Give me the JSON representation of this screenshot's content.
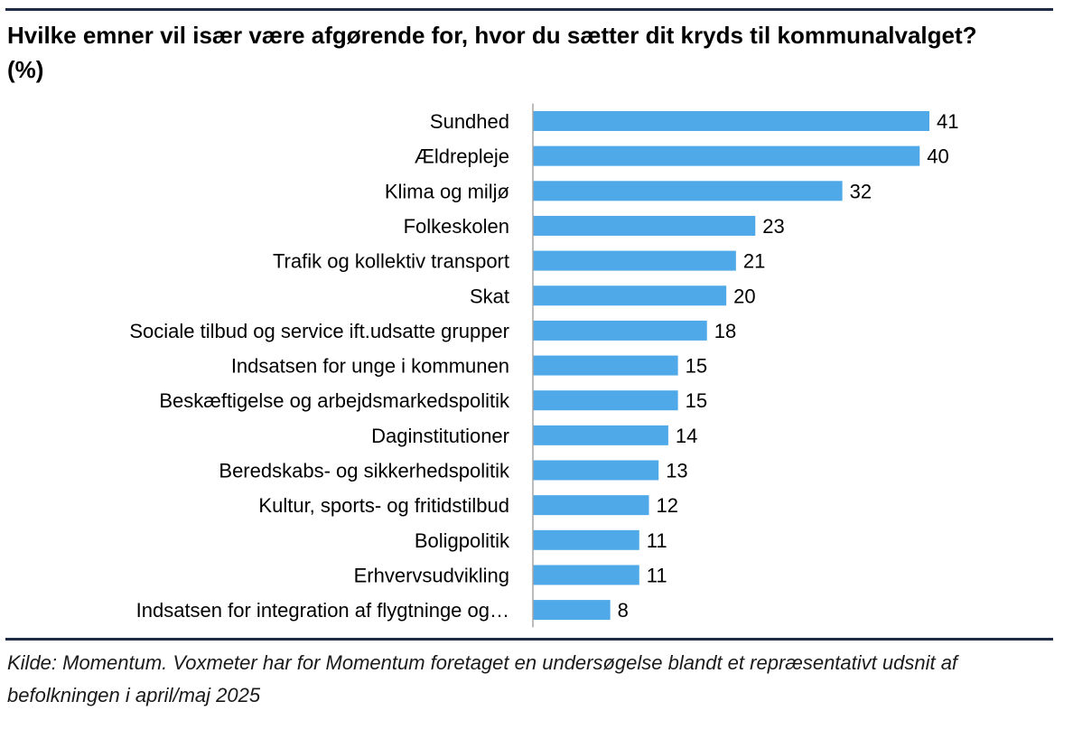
{
  "title": "Hvilke emner vil især være afgørende for, hvor du sætter dit kryds til kommunalvalget?  (%)",
  "source": "Kilde: Momentum. Voxmeter har for Momentum foretaget en undersøgelse blandt et repræsentativt udsnit af befolkningen i april/maj 2025",
  "colors": {
    "bar": "#4fa9e8",
    "axis": "#a6a6a6",
    "rule": "#1f2a44"
  },
  "chart_data": {
    "type": "bar",
    "orientation": "horizontal",
    "title": "Hvilke emner vil især være afgørende for, hvor du sætter dit kryds til kommunalvalget?  (%)",
    "xlabel": "",
    "ylabel": "",
    "xlim": [
      0,
      41
    ],
    "grid": false,
    "categories": [
      "Sundhed",
      "Ældrepleje",
      "Klima og miljø",
      "Folkeskolen",
      "Trafik og kollektiv transport",
      "Skat",
      "Sociale tilbud og service ift.udsatte grupper",
      "Indsatsen for unge i kommunen",
      "Beskæftigelse og arbejdsmarkedspolitik",
      "Daginstitutioner",
      "Beredskabs- og sikkerhedspolitik",
      "Kultur, sports- og fritidstilbud",
      "Boligpolitik",
      "Erhvervsudvikling",
      "Indsatsen for integration af flygtninge og…"
    ],
    "values": [
      41,
      40,
      32,
      23,
      21,
      20,
      18,
      15,
      15,
      14,
      13,
      12,
      11,
      11,
      8
    ]
  }
}
